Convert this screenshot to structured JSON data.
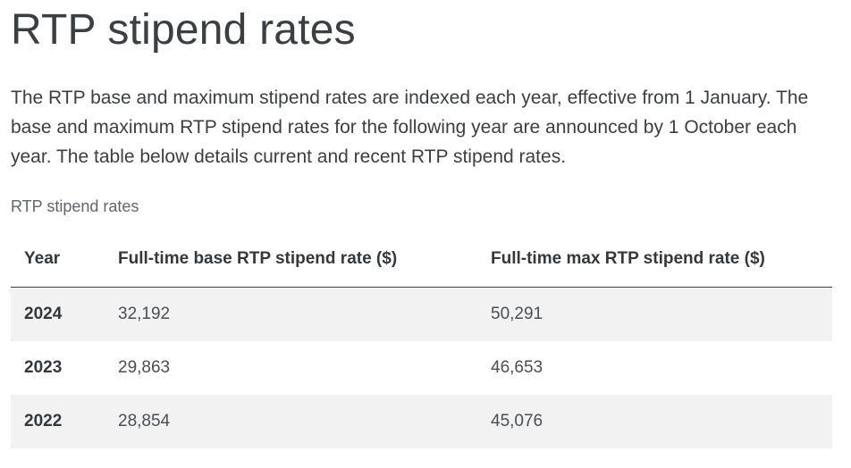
{
  "page": {
    "title": "RTP stipend rates",
    "intro": "The RTP base and maximum stipend rates are indexed each year, effective from 1 January. The base and maximum RTP stipend rates for the following year are announced by 1 October each year. The table below details current and recent RTP stipend rates."
  },
  "table": {
    "caption": "RTP stipend rates",
    "headers": {
      "year": "Year",
      "base": "Full-time base RTP stipend rate ($)",
      "max": "Full-time max RTP stipend rate ($)"
    },
    "rows": [
      {
        "year": "2024",
        "base": "32,192",
        "max": "50,291"
      },
      {
        "year": "2023",
        "base": "29,863",
        "max": "46,653"
      },
      {
        "year": "2022",
        "base": "28,854",
        "max": "45,076"
      }
    ]
  }
}
